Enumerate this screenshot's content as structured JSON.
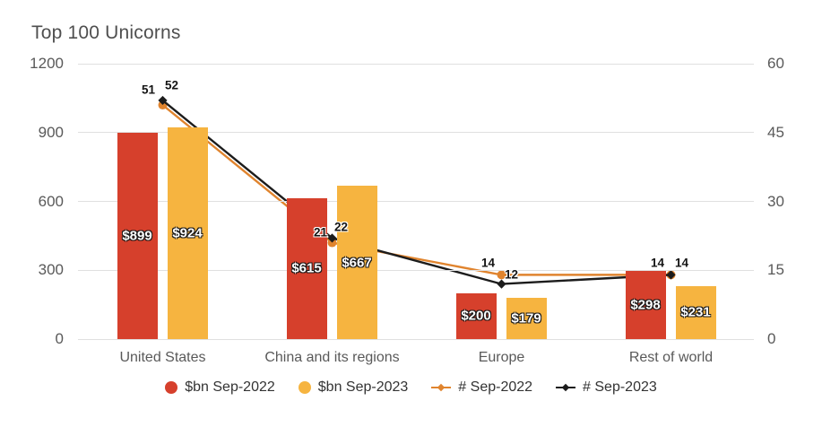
{
  "title": "Top 100 Unicorns",
  "chart_data": {
    "type": "combo-bar-line",
    "title": "Top 100 Unicorns",
    "categories": [
      "United States",
      "China and its regions",
      "Europe",
      "Rest of world"
    ],
    "bar_series": [
      {
        "name": "$bn Sep-2022",
        "color": "#d6402c",
        "values": [
          899,
          615,
          200,
          298
        ],
        "data_labels": [
          "$899",
          "$615",
          "$200",
          "$298"
        ]
      },
      {
        "name": "$bn Sep-2023",
        "color": "#f6b440",
        "values": [
          924,
          667,
          179,
          231
        ],
        "data_labels": [
          "$924",
          "$667",
          "$179",
          "$231"
        ]
      }
    ],
    "line_series": [
      {
        "name": "# Sep-2022",
        "color": "#e0842e",
        "marker": "circle",
        "values": [
          51,
          21,
          14,
          14
        ],
        "data_labels": [
          "51",
          "21",
          "14",
          "14"
        ]
      },
      {
        "name": "# Sep-2023",
        "color": "#1c1c1c",
        "marker": "diamond",
        "values": [
          52,
          22,
          12,
          14
        ],
        "data_labels": [
          "52",
          "22",
          "12",
          "14"
        ]
      }
    ],
    "left_axis": {
      "min": 0,
      "max": 1200,
      "ticks": [
        0,
        300,
        600,
        900,
        1200
      ]
    },
    "right_axis": {
      "min": 0,
      "max": 60,
      "ticks": [
        0,
        15,
        30,
        45,
        60
      ]
    },
    "grid": true,
    "legend_position": "bottom",
    "colors": {
      "grid": "#e0e0e0",
      "axis_text": "#595959",
      "title_text": "#4f4f4f",
      "legend_text": "#333333"
    }
  }
}
